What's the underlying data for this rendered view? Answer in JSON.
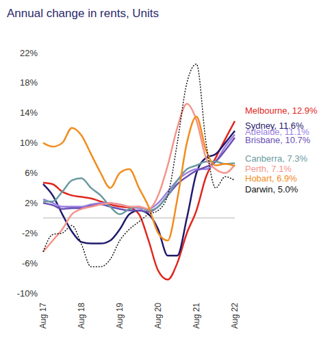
{
  "chart_data": {
    "type": "line",
    "title": "Annual change in rents, Units",
    "categories": [
      "Aug 17",
      null,
      null,
      null,
      "Aug 18",
      null,
      null,
      null,
      "Aug 19",
      null,
      null,
      null,
      "Aug 20",
      null,
      null,
      null,
      "Aug 21",
      null,
      null,
      null,
      "Aug 22"
    ],
    "ylim": [
      -10,
      22
    ],
    "yticks": [
      {
        "value": -10,
        "label": "-10%"
      },
      {
        "value": -6,
        "label": "-6%"
      },
      {
        "value": -2,
        "label": "-2%"
      },
      {
        "value": 2,
        "label": "2%"
      },
      {
        "value": 6,
        "label": "6%"
      },
      {
        "value": 10,
        "label": "10%"
      },
      {
        "value": 14,
        "label": "14%"
      },
      {
        "value": 18,
        "label": "18%"
      },
      {
        "value": 22,
        "label": "22%"
      }
    ],
    "grid": false,
    "reference_line": 0,
    "series": [
      {
        "name": "Melbourne, 12.9%",
        "color": "#e0261d",
        "line_style": "solid",
        "values": [
          4.7,
          4.5,
          3.5,
          3,
          2.8,
          2.6,
          2.2,
          1.8,
          1.5,
          1.4,
          0.5,
          -3,
          -7,
          -8.2,
          -6,
          -2,
          1,
          5.5,
          8,
          10.5,
          12.9
        ]
      },
      {
        "name": "Sydney, 11.6%",
        "color": "#1f1a6b",
        "line_style": "solid",
        "values": [
          4.5,
          3,
          0.5,
          -1.8,
          -3.2,
          -3.4,
          -3.4,
          -3,
          -1.5,
          0.5,
          1,
          0.5,
          -1.5,
          -5,
          -5,
          0,
          6,
          8,
          8.5,
          10,
          11.6
        ]
      },
      {
        "name": "Adelaide, 11.1%",
        "color": "#9b7fe0",
        "line_style": "solid",
        "values": [
          2.5,
          2,
          1.5,
          1.5,
          1.5,
          1.8,
          2,
          2,
          1.8,
          1.5,
          1.3,
          1.2,
          2,
          3.5,
          5,
          6,
          6.5,
          6.5,
          7.5,
          9.5,
          11.1
        ]
      },
      {
        "name": "Brisbane, 10.7%",
        "color": "#6a4fb5",
        "line_style": "solid",
        "values": [
          2,
          1.7,
          1.2,
          1.3,
          1.3,
          1.6,
          1.8,
          1.5,
          1.2,
          1,
          1,
          0.8,
          1.5,
          3,
          4.5,
          5.5,
          6.3,
          6.8,
          7.5,
          9,
          10.7
        ]
      },
      {
        "name": "Canberra, 7.3%",
        "color": "#6b9aa0",
        "line_style": "solid",
        "values": [
          2.2,
          2.2,
          3.5,
          5,
          5.3,
          4,
          3,
          1.5,
          0.5,
          1.2,
          1.5,
          1,
          1.5,
          3,
          5,
          6.5,
          7,
          7.5,
          7.5,
          7.2,
          7.3
        ]
      },
      {
        "name": "Perth, 7.1%",
        "color": "#f4948a",
        "line_style": "solid",
        "values": [
          -4.5,
          -3,
          -1.5,
          0.5,
          1.2,
          1.5,
          1.8,
          2,
          1.8,
          1.5,
          1.5,
          1.2,
          3,
          7,
          12,
          15.2,
          13,
          8,
          6.5,
          6,
          7.1
        ]
      },
      {
        "name": "Hobart, 6.9%",
        "color": "#f28c1c",
        "line_style": "solid",
        "values": [
          10,
          9.5,
          10,
          12,
          11,
          8.5,
          6,
          4,
          6,
          6.5,
          4,
          1.5,
          -2,
          -3,
          2.5,
          10,
          13.5,
          9,
          7,
          7.2,
          6.9
        ]
      },
      {
        "name": "Darwin, 5.0%",
        "color": "#111111",
        "line_style": "dotted",
        "values": [
          -4.5,
          -2.2,
          -2,
          -1,
          -3.5,
          -6.5,
          -6.5,
          -5.5,
          -3,
          -1.5,
          -0.5,
          0.5,
          1,
          3,
          10,
          18,
          20.5,
          10,
          4,
          5.5,
          5
        ]
      }
    ]
  }
}
